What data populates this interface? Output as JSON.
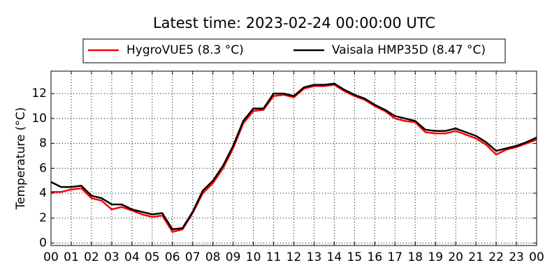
{
  "chart_data": {
    "type": "line",
    "title": "Latest time: 2023-02-24 00:00:00 UTC",
    "ylabel": "Temperature (°C)",
    "x": [
      0,
      0.5,
      1,
      1.5,
      2,
      2.5,
      3,
      3.5,
      4,
      4.5,
      5,
      5.5,
      6,
      6.5,
      7,
      7.5,
      8,
      8.5,
      9,
      9.5,
      10,
      10.5,
      11,
      11.5,
      12,
      12.5,
      13,
      13.5,
      14,
      14.5,
      15,
      15.5,
      16,
      16.5,
      17,
      17.5,
      18,
      18.5,
      19,
      19.5,
      20,
      20.5,
      21,
      21.5,
      22,
      22.5,
      23,
      23.5,
      24
    ],
    "series": [
      {
        "name": "HygroVUE5 (8.3 °C)",
        "color": "#ff0000",
        "values": [
          4.1,
          4.1,
          4.3,
          4.4,
          3.6,
          3.4,
          2.7,
          2.9,
          2.6,
          2.3,
          2.1,
          2.2,
          0.9,
          1.1,
          2.4,
          4.0,
          4.8,
          6.0,
          7.6,
          9.6,
          10.6,
          10.7,
          11.8,
          11.9,
          11.7,
          12.4,
          12.6,
          12.6,
          12.7,
          12.2,
          11.8,
          11.5,
          11.0,
          10.6,
          10.0,
          9.8,
          9.7,
          8.9,
          8.8,
          8.8,
          9.0,
          8.7,
          8.4,
          7.9,
          7.1,
          7.5,
          7.7,
          8.0,
          8.3
        ]
      },
      {
        "name": "Vaisala HMP35D (8.47 °C)",
        "color": "#000000",
        "values": [
          4.9,
          4.5,
          4.5,
          4.6,
          3.8,
          3.6,
          3.1,
          3.1,
          2.7,
          2.5,
          2.3,
          2.4,
          1.1,
          1.2,
          2.5,
          4.2,
          5.0,
          6.2,
          7.8,
          9.8,
          10.8,
          10.8,
          12.0,
          12.0,
          11.8,
          12.5,
          12.7,
          12.7,
          12.8,
          12.3,
          11.9,
          11.6,
          11.1,
          10.7,
          10.2,
          10.0,
          9.8,
          9.1,
          9.0,
          9.0,
          9.2,
          8.9,
          8.6,
          8.1,
          7.4,
          7.6,
          7.8,
          8.1,
          8.47
        ]
      }
    ],
    "xlim": [
      0,
      24
    ],
    "xticks": [
      {
        "value": 0,
        "label": "00"
      },
      {
        "value": 1,
        "label": "01"
      },
      {
        "value": 2,
        "label": "02"
      },
      {
        "value": 3,
        "label": "03"
      },
      {
        "value": 4,
        "label": "04"
      },
      {
        "value": 5,
        "label": "05"
      },
      {
        "value": 6,
        "label": "06"
      },
      {
        "value": 7,
        "label": "07"
      },
      {
        "value": 8,
        "label": "08"
      },
      {
        "value": 9,
        "label": "09"
      },
      {
        "value": 10,
        "label": "10"
      },
      {
        "value": 11,
        "label": "11"
      },
      {
        "value": 12,
        "label": "12"
      },
      {
        "value": 13,
        "label": "13"
      },
      {
        "value": 14,
        "label": "14"
      },
      {
        "value": 15,
        "label": "15"
      },
      {
        "value": 16,
        "label": "16"
      },
      {
        "value": 17,
        "label": "17"
      },
      {
        "value": 18,
        "label": "18"
      },
      {
        "value": 19,
        "label": "19"
      },
      {
        "value": 20,
        "label": "20"
      },
      {
        "value": 21,
        "label": "21"
      },
      {
        "value": 22,
        "label": "22"
      },
      {
        "value": 23,
        "label": "23"
      },
      {
        "value": 24,
        "label": "00"
      }
    ],
    "ylim": [
      -0.2,
      13.8
    ],
    "yticks": [
      0,
      2,
      4,
      6,
      8,
      10,
      12
    ],
    "grid": true,
    "legend": "top"
  }
}
